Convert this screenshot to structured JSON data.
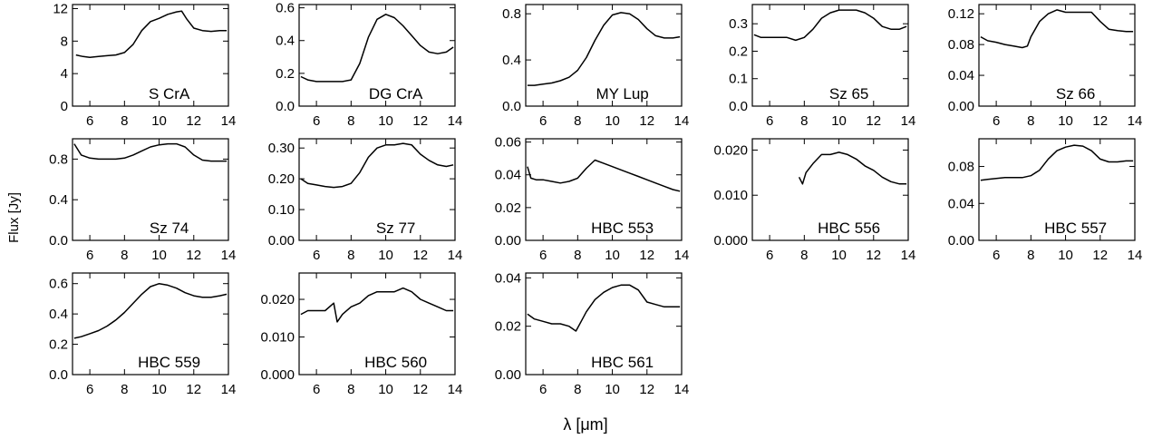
{
  "figure": {
    "xlabel": "λ [μm]",
    "ylabel": "Flux [Jy]"
  },
  "chart_data": [
    {
      "type": "line",
      "panel_label": "S CrA",
      "xlim": [
        5,
        14
      ],
      "xticks": [
        6,
        8,
        10,
        12,
        14
      ],
      "ylim": [
        0,
        12.5
      ],
      "yticks": [
        0,
        4,
        8,
        12
      ],
      "ytick_labels": [
        "0",
        "4",
        "8",
        "12"
      ],
      "series": [
        {
          "x": [
            5.2,
            5.6,
            6.0,
            6.5,
            7.0,
            7.5,
            8.0,
            8.5,
            9.0,
            9.5,
            10.0,
            10.5,
            11.0,
            11.3,
            11.6,
            12.0,
            12.5,
            13.0,
            13.5,
            13.9
          ],
          "y": [
            6.3,
            6.1,
            6.0,
            6.1,
            6.2,
            6.3,
            6.6,
            7.6,
            9.3,
            10.4,
            10.8,
            11.3,
            11.6,
            11.7,
            10.7,
            9.6,
            9.3,
            9.2,
            9.3,
            9.3
          ]
        }
      ]
    },
    {
      "type": "line",
      "panel_label": "DG CrA",
      "xlim": [
        5,
        14
      ],
      "xticks": [
        6,
        8,
        10,
        12,
        14
      ],
      "ylim": [
        0,
        0.62
      ],
      "yticks": [
        0,
        0.2,
        0.4,
        0.6
      ],
      "ytick_labels": [
        "0.0",
        "0.2",
        "0.4",
        "0.6"
      ],
      "series": [
        {
          "x": [
            5.1,
            5.5,
            6.0,
            6.5,
            7.0,
            7.5,
            8.0,
            8.5,
            9.0,
            9.5,
            10.0,
            10.5,
            11.0,
            11.5,
            12.0,
            12.5,
            13.0,
            13.5,
            13.9
          ],
          "y": [
            0.18,
            0.16,
            0.15,
            0.15,
            0.15,
            0.15,
            0.16,
            0.26,
            0.42,
            0.53,
            0.56,
            0.54,
            0.49,
            0.43,
            0.37,
            0.33,
            0.32,
            0.33,
            0.36
          ]
        }
      ]
    },
    {
      "type": "line",
      "panel_label": "MY Lup",
      "xlim": [
        5,
        14
      ],
      "xticks": [
        6,
        8,
        10,
        12,
        14
      ],
      "ylim": [
        0,
        0.88
      ],
      "yticks": [
        0,
        0.4,
        0.8
      ],
      "ytick_labels": [
        "0.0",
        "0.4",
        "0.8"
      ],
      "series": [
        {
          "x": [
            5.1,
            5.5,
            6.0,
            6.5,
            7.0,
            7.5,
            8.0,
            8.5,
            9.0,
            9.5,
            10.0,
            10.5,
            11.0,
            11.5,
            12.0,
            12.5,
            13.0,
            13.5,
            13.9
          ],
          "y": [
            0.18,
            0.18,
            0.19,
            0.2,
            0.22,
            0.25,
            0.31,
            0.42,
            0.57,
            0.7,
            0.79,
            0.81,
            0.8,
            0.75,
            0.67,
            0.61,
            0.59,
            0.59,
            0.6
          ]
        }
      ]
    },
    {
      "type": "line",
      "panel_label": "Sz 65",
      "xlim": [
        5,
        14
      ],
      "xticks": [
        6,
        8,
        10,
        12,
        14
      ],
      "ylim": [
        0,
        0.37
      ],
      "yticks": [
        0,
        0.1,
        0.2,
        0.3
      ],
      "ytick_labels": [
        "0.0",
        "0.1",
        "0.2",
        "0.3"
      ],
      "series": [
        {
          "x": [
            5.1,
            5.5,
            6.0,
            6.5,
            7.0,
            7.5,
            8.0,
            8.5,
            9.0,
            9.5,
            10.0,
            10.5,
            11.0,
            11.5,
            12.0,
            12.5,
            13.0,
            13.5,
            13.9
          ],
          "y": [
            0.26,
            0.25,
            0.25,
            0.25,
            0.25,
            0.24,
            0.25,
            0.28,
            0.32,
            0.34,
            0.35,
            0.35,
            0.35,
            0.34,
            0.32,
            0.29,
            0.28,
            0.28,
            0.29
          ]
        }
      ]
    },
    {
      "type": "line",
      "panel_label": "Sz 66",
      "xlim": [
        5,
        14
      ],
      "xticks": [
        6,
        8,
        10,
        12,
        14
      ],
      "ylim": [
        0,
        0.132
      ],
      "yticks": [
        0,
        0.04,
        0.08,
        0.12
      ],
      "ytick_labels": [
        "0.00",
        "0.04",
        "0.08",
        "0.12"
      ],
      "series": [
        {
          "x": [
            5.1,
            5.5,
            6.0,
            6.5,
            7.0,
            7.5,
            7.8,
            8.0,
            8.5,
            9.0,
            9.5,
            10.0,
            10.5,
            11.0,
            11.5,
            12.0,
            12.5,
            13.0,
            13.5,
            13.9
          ],
          "y": [
            0.09,
            0.085,
            0.083,
            0.08,
            0.078,
            0.076,
            0.078,
            0.09,
            0.11,
            0.12,
            0.125,
            0.122,
            0.122,
            0.122,
            0.122,
            0.11,
            0.1,
            0.098,
            0.097,
            0.097
          ]
        }
      ]
    },
    {
      "type": "line",
      "panel_label": "Sz 74",
      "xlim": [
        5,
        14
      ],
      "xticks": [
        6,
        8,
        10,
        12,
        14
      ],
      "ylim": [
        0,
        1.0
      ],
      "yticks": [
        0,
        0.4,
        0.8
      ],
      "ytick_labels": [
        "0.0",
        "0.4",
        "0.8"
      ],
      "series": [
        {
          "x": [
            5.1,
            5.5,
            6.0,
            6.5,
            7.0,
            7.5,
            8.0,
            8.5,
            9.0,
            9.5,
            10.0,
            10.5,
            11.0,
            11.5,
            12.0,
            12.5,
            13.0,
            13.5,
            13.9
          ],
          "y": [
            0.95,
            0.84,
            0.81,
            0.8,
            0.8,
            0.8,
            0.81,
            0.84,
            0.88,
            0.92,
            0.94,
            0.95,
            0.95,
            0.92,
            0.84,
            0.79,
            0.78,
            0.78,
            0.78
          ]
        }
      ]
    },
    {
      "type": "line",
      "panel_label": "Sz 77",
      "xlim": [
        5,
        14
      ],
      "xticks": [
        6,
        8,
        10,
        12,
        14
      ],
      "ylim": [
        0,
        0.33
      ],
      "yticks": [
        0,
        0.1,
        0.2,
        0.3
      ],
      "ytick_labels": [
        "0.00",
        "0.10",
        "0.20",
        "0.30"
      ],
      "series": [
        {
          "x": [
            5.1,
            5.5,
            6.0,
            6.5,
            7.0,
            7.5,
            8.0,
            8.5,
            9.0,
            9.5,
            10.0,
            10.5,
            11.0,
            11.5,
            12.0,
            12.5,
            13.0,
            13.5,
            13.9
          ],
          "y": [
            0.2,
            0.185,
            0.18,
            0.175,
            0.172,
            0.175,
            0.185,
            0.22,
            0.27,
            0.3,
            0.31,
            0.31,
            0.315,
            0.31,
            0.28,
            0.26,
            0.245,
            0.24,
            0.245
          ]
        }
      ]
    },
    {
      "type": "line",
      "panel_label": "HBC 553",
      "xlim": [
        5,
        14
      ],
      "xticks": [
        6,
        8,
        10,
        12,
        14
      ],
      "ylim": [
        0,
        0.062
      ],
      "yticks": [
        0,
        0.02,
        0.04,
        0.06
      ],
      "ytick_labels": [
        "0.00",
        "0.02",
        "0.04",
        "0.06"
      ],
      "series": [
        {
          "x": [
            5.1,
            5.3,
            5.6,
            6.0,
            6.5,
            7.0,
            7.5,
            8.0,
            8.5,
            9.0,
            9.5,
            10.0,
            10.5,
            11.0,
            11.5,
            12.0,
            12.5,
            13.0,
            13.5,
            13.9
          ],
          "y": [
            0.045,
            0.038,
            0.037,
            0.037,
            0.036,
            0.035,
            0.036,
            0.038,
            0.044,
            0.049,
            0.047,
            0.045,
            0.043,
            0.041,
            0.039,
            0.037,
            0.035,
            0.033,
            0.031,
            0.03
          ]
        }
      ]
    },
    {
      "type": "line",
      "panel_label": "HBC 556",
      "xlim": [
        5,
        14
      ],
      "xticks": [
        6,
        8,
        10,
        12,
        14
      ],
      "ylim": [
        0,
        0.0225
      ],
      "yticks": [
        0,
        0.01,
        0.02
      ],
      "ytick_labels": [
        "0.000",
        "0.010",
        "0.020"
      ],
      "series": [
        {
          "x": [
            7.7,
            7.9,
            8.1,
            8.5,
            9.0,
            9.5,
            10.0,
            10.5,
            11.0,
            11.5,
            12.0,
            12.5,
            13.0,
            13.5,
            13.9
          ],
          "y": [
            0.014,
            0.0125,
            0.015,
            0.017,
            0.019,
            0.019,
            0.0195,
            0.019,
            0.018,
            0.0165,
            0.0155,
            0.014,
            0.013,
            0.0125,
            0.0125
          ]
        }
      ]
    },
    {
      "type": "line",
      "panel_label": "HBC 557",
      "xlim": [
        5,
        14
      ],
      "xticks": [
        6,
        8,
        10,
        12,
        14
      ],
      "ylim": [
        0,
        0.11
      ],
      "yticks": [
        0,
        0.04,
        0.08
      ],
      "ytick_labels": [
        "0.00",
        "0.04",
        "0.08"
      ],
      "series": [
        {
          "x": [
            5.1,
            5.5,
            6.0,
            6.5,
            7.0,
            7.5,
            8.0,
            8.5,
            9.0,
            9.5,
            10.0,
            10.5,
            11.0,
            11.5,
            12.0,
            12.5,
            13.0,
            13.5,
            13.9
          ],
          "y": [
            0.065,
            0.066,
            0.067,
            0.068,
            0.068,
            0.068,
            0.07,
            0.076,
            0.088,
            0.097,
            0.101,
            0.103,
            0.102,
            0.097,
            0.088,
            0.085,
            0.085,
            0.086,
            0.086
          ]
        }
      ]
    },
    {
      "type": "line",
      "panel_label": "HBC 559",
      "xlim": [
        5,
        14
      ],
      "xticks": [
        6,
        8,
        10,
        12,
        14
      ],
      "ylim": [
        0,
        0.67
      ],
      "yticks": [
        0,
        0.2,
        0.4,
        0.6
      ],
      "ytick_labels": [
        "0.0",
        "0.2",
        "0.4",
        "0.6"
      ],
      "series": [
        {
          "x": [
            5.1,
            5.5,
            6.0,
            6.5,
            7.0,
            7.5,
            8.0,
            8.5,
            9.0,
            9.5,
            10.0,
            10.5,
            11.0,
            11.5,
            12.0,
            12.5,
            13.0,
            13.5,
            13.9
          ],
          "y": [
            0.24,
            0.25,
            0.27,
            0.29,
            0.32,
            0.36,
            0.41,
            0.47,
            0.53,
            0.58,
            0.6,
            0.59,
            0.57,
            0.54,
            0.52,
            0.51,
            0.51,
            0.52,
            0.53
          ]
        }
      ]
    },
    {
      "type": "line",
      "panel_label": "HBC 560",
      "xlim": [
        5,
        14
      ],
      "xticks": [
        6,
        8,
        10,
        12,
        14
      ],
      "ylim": [
        0,
        0.027
      ],
      "yticks": [
        0,
        0.01,
        0.02
      ],
      "ytick_labels": [
        "0.000",
        "0.010",
        "0.020"
      ],
      "series": [
        {
          "x": [
            5.1,
            5.5,
            6.0,
            6.5,
            7.0,
            7.2,
            7.5,
            8.0,
            8.5,
            9.0,
            9.5,
            10.0,
            10.5,
            11.0,
            11.5,
            12.0,
            12.5,
            13.0,
            13.5,
            13.9
          ],
          "y": [
            0.016,
            0.017,
            0.017,
            0.017,
            0.019,
            0.014,
            0.016,
            0.018,
            0.019,
            0.021,
            0.022,
            0.022,
            0.022,
            0.023,
            0.022,
            0.02,
            0.019,
            0.018,
            0.017,
            0.017
          ]
        }
      ]
    },
    {
      "type": "line",
      "panel_label": "HBC 561",
      "xlim": [
        5,
        14
      ],
      "xticks": [
        6,
        8,
        10,
        12,
        14
      ],
      "ylim": [
        0,
        0.042
      ],
      "yticks": [
        0,
        0.02,
        0.04
      ],
      "ytick_labels": [
        "0.00",
        "0.02",
        "0.04"
      ],
      "series": [
        {
          "x": [
            5.1,
            5.5,
            6.0,
            6.5,
            7.0,
            7.5,
            7.9,
            8.2,
            8.5,
            9.0,
            9.5,
            10.0,
            10.5,
            11.0,
            11.5,
            12.0,
            12.5,
            13.0,
            13.5,
            13.9
          ],
          "y": [
            0.025,
            0.023,
            0.022,
            0.021,
            0.021,
            0.02,
            0.018,
            0.022,
            0.026,
            0.031,
            0.034,
            0.036,
            0.037,
            0.037,
            0.035,
            0.03,
            0.029,
            0.028,
            0.028,
            0.028
          ]
        }
      ]
    }
  ]
}
